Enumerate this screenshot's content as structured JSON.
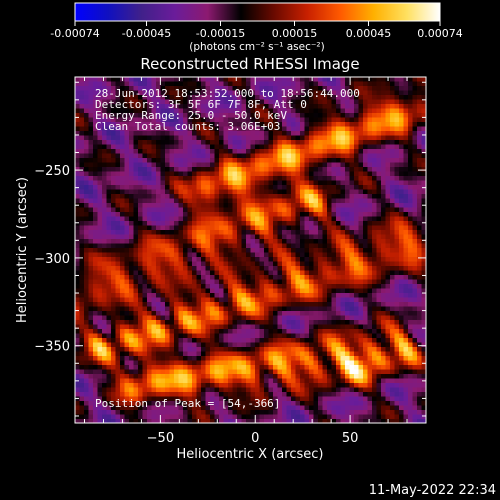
{
  "colorbar": {
    "ticks": [
      "-0.00074",
      "-0.00045",
      "-0.00015",
      "0.00015",
      "0.00045",
      "0.00074"
    ],
    "tick_values": [
      -0.00074,
      -0.00045,
      -0.00015,
      0.00015,
      0.00045,
      0.00074
    ],
    "units": "(photons cm⁻² s⁻¹ asec⁻²)",
    "colors": [
      "#0000ff",
      "#1010c0",
      "#40208a",
      "#6a1c9a",
      "#8c1a70",
      "#000000",
      "#6a0a00",
      "#c82000",
      "#ff5a00",
      "#ffb000",
      "#ffe060",
      "#ffffff"
    ]
  },
  "chart_data": {
    "type": "heatmap",
    "title": "Reconstructed RHESSI Image",
    "xlabel": "Heliocentric X (arcsec)",
    "ylabel": "Heliocentric Y (arcsec)",
    "xlim": [
      -95,
      90
    ],
    "ylim": [
      -394,
      -197
    ],
    "xticks": [
      -50,
      0,
      50
    ],
    "xtick_labels": [
      "−50",
      "0",
      "50"
    ],
    "yticks": [
      -250,
      -300,
      -350
    ],
    "ytick_labels": [
      "−250",
      "−300",
      "−350"
    ],
    "value_range": [
      -0.00074,
      0.00074
    ],
    "peak": [
      54,
      -366
    ],
    "ridges": [
      {
        "x0": -25,
        "y0": -262,
        "x1": 80,
        "y1": -215,
        "amp": 0.00068
      },
      {
        "x0": -90,
        "y0": -318,
        "x1": 30,
        "y1": -268,
        "amp": 0.00055
      },
      {
        "x0": -80,
        "y0": -350,
        "x1": 85,
        "y1": -290,
        "amp": 0.0006
      },
      {
        "x0": -60,
        "y0": -372,
        "x1": 75,
        "y1": -352,
        "amp": 0.0007
      }
    ],
    "annotations": [
      "28-Jun-2012 18:53:52.000 to 18:56:44.000",
      "Detectors: 3F 5F 6F 7F 8F, Att 0",
      "Energy Range: 25.0 - 50.0 keV",
      "Clean     Total counts: 3.06E+03"
    ],
    "peak_label": "Position of Peak = [54,-366]"
  },
  "footer": "11-May-2022 22:34"
}
